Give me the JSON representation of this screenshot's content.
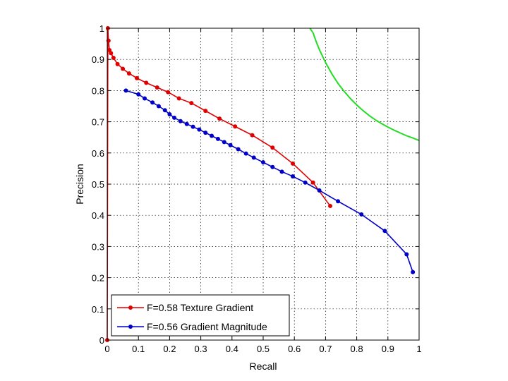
{
  "chart_data": {
    "type": "line",
    "title": "",
    "xlabel": "Recall",
    "ylabel": "Precision",
    "xlim": [
      0,
      1
    ],
    "ylim": [
      0,
      1
    ],
    "xticks": [
      0,
      0.1,
      0.2,
      0.3,
      0.4,
      0.5,
      0.6,
      0.7,
      0.8,
      0.9,
      1
    ],
    "yticks": [
      0,
      0.1,
      0.2,
      0.3,
      0.4,
      0.5,
      0.6,
      0.7,
      0.8,
      0.9,
      1
    ],
    "xtick_labels": [
      "0",
      "0.1",
      "0.2",
      "0.3",
      "0.4",
      "0.5",
      "0.6",
      "0.7",
      "0.8",
      "0.9",
      "1"
    ],
    "ytick_labels": [
      "0",
      "0.1",
      "0.2",
      "0.3",
      "0.4",
      "0.5",
      "0.6",
      "0.7",
      "0.8",
      "0.9",
      "1"
    ],
    "grid": true,
    "legend_position": "bottom-left",
    "series": [
      {
        "name": "F=0.58 Texture Gradient",
        "color": "#e00000",
        "markers": true,
        "x": [
          0.0,
          0.002,
          0.004,
          0.007,
          0.012,
          0.02,
          0.033,
          0.05,
          0.07,
          0.095,
          0.125,
          0.16,
          0.195,
          0.23,
          0.27,
          0.315,
          0.36,
          0.41,
          0.465,
          0.53,
          0.595,
          0.66,
          0.715
        ],
        "y": [
          0.0,
          1.0,
          0.96,
          0.93,
          0.92,
          0.905,
          0.885,
          0.87,
          0.855,
          0.84,
          0.825,
          0.81,
          0.795,
          0.775,
          0.76,
          0.735,
          0.71,
          0.685,
          0.657,
          0.617,
          0.566,
          0.505,
          0.43
        ]
      },
      {
        "name": "F=0.56 Gradient Magnitude",
        "color": "#0000c8",
        "markers": true,
        "x": [
          0.06,
          0.1,
          0.12,
          0.145,
          0.165,
          0.185,
          0.2,
          0.215,
          0.235,
          0.255,
          0.275,
          0.295,
          0.315,
          0.335,
          0.355,
          0.375,
          0.395,
          0.42,
          0.445,
          0.47,
          0.5,
          0.53,
          0.56,
          0.595,
          0.635,
          0.68,
          0.74,
          0.815,
          0.89,
          0.96,
          0.98
        ],
        "y": [
          0.8,
          0.788,
          0.775,
          0.762,
          0.75,
          0.737,
          0.724,
          0.713,
          0.702,
          0.693,
          0.684,
          0.675,
          0.665,
          0.655,
          0.645,
          0.635,
          0.625,
          0.612,
          0.598,
          0.585,
          0.57,
          0.555,
          0.54,
          0.525,
          0.505,
          0.48,
          0.445,
          0.403,
          0.35,
          0.275,
          0.218
        ]
      },
      {
        "name": "",
        "color": "#22dd22",
        "markers": false,
        "x": [
          0.65,
          0.66,
          0.67,
          0.68,
          0.7,
          0.72,
          0.74,
          0.76,
          0.78,
          0.8,
          0.82,
          0.84,
          0.86,
          0.88,
          0.9,
          0.92,
          0.94,
          0.96,
          0.98,
          1.0
        ],
        "y": [
          1.0,
          0.985,
          0.957,
          0.932,
          0.89,
          0.854,
          0.823,
          0.797,
          0.774,
          0.754,
          0.736,
          0.72,
          0.706,
          0.694,
          0.683,
          0.673,
          0.664,
          0.655,
          0.648,
          0.64
        ]
      }
    ],
    "legend": [
      {
        "label": "F=0.58 Texture Gradient",
        "color": "#e00000"
      },
      {
        "label": "F=0.56 Gradient Magnitude",
        "color": "#0000c8"
      }
    ]
  }
}
